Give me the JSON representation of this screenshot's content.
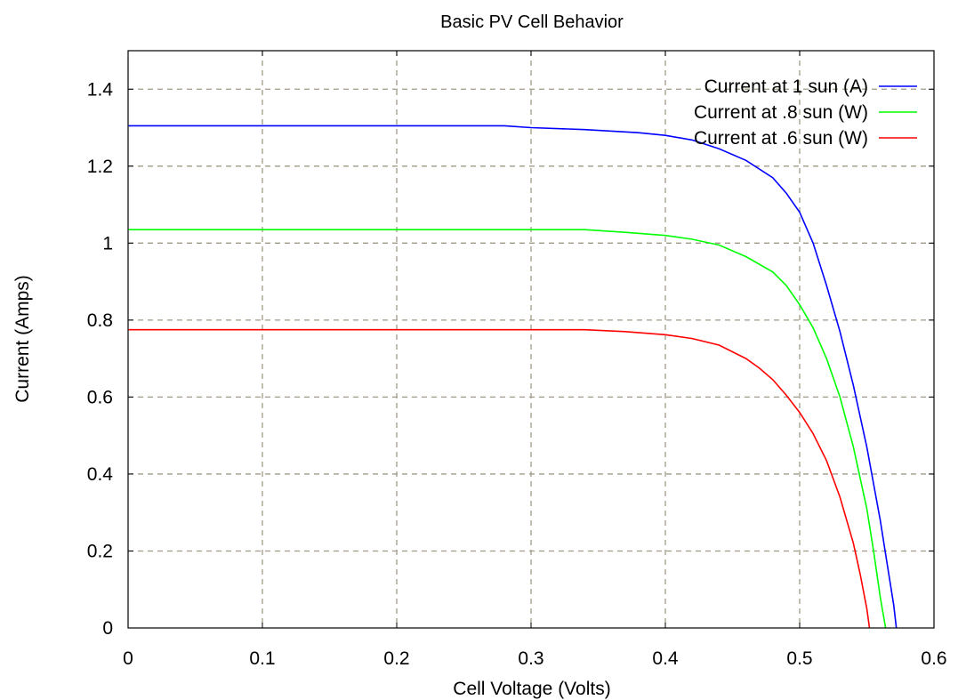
{
  "chart_data": {
    "type": "line",
    "title": "Basic PV Cell Behavior",
    "xlabel": "Cell Voltage (Volts)",
    "ylabel": "Current (Amps)",
    "xlim": [
      0,
      0.6
    ],
    "ylim": [
      0,
      1.5
    ],
    "xticks": [
      0,
      0.1,
      0.2,
      0.3,
      0.4,
      0.5,
      0.6
    ],
    "xtick_labels": [
      "0",
      "0.1",
      "0.2",
      "0.3",
      "0.4",
      "0.5",
      "0.6"
    ],
    "yticks": [
      0,
      0.2,
      0.4,
      0.6,
      0.8,
      1.0,
      1.2,
      1.4
    ],
    "ytick_labels": [
      "0",
      "0.2",
      "0.4",
      "0.6",
      "0.8",
      "1",
      "1.2",
      "1.4"
    ],
    "grid": true,
    "legend_position": "top-right",
    "series": [
      {
        "name": "Current at 1 sun (A)",
        "color": "#0000ff",
        "x": [
          0,
          0.1,
          0.2,
          0.28,
          0.3,
          0.34,
          0.38,
          0.4,
          0.42,
          0.44,
          0.46,
          0.48,
          0.49,
          0.5,
          0.51,
          0.52,
          0.53,
          0.54,
          0.55,
          0.56,
          0.565,
          0.57,
          0.572
        ],
        "y": [
          1.305,
          1.305,
          1.305,
          1.305,
          1.3,
          1.295,
          1.287,
          1.28,
          1.268,
          1.245,
          1.215,
          1.17,
          1.13,
          1.08,
          1.0,
          0.89,
          0.77,
          0.63,
          0.47,
          0.28,
          0.17,
          0.06,
          0
        ]
      },
      {
        "name": "Current at .8 sun (W)",
        "color": "#00ff00",
        "x": [
          0,
          0.1,
          0.2,
          0.3,
          0.34,
          0.37,
          0.4,
          0.42,
          0.44,
          0.46,
          0.48,
          0.49,
          0.5,
          0.51,
          0.52,
          0.53,
          0.54,
          0.55,
          0.555,
          0.56,
          0.564
        ],
        "y": [
          1.035,
          1.035,
          1.035,
          1.035,
          1.035,
          1.028,
          1.02,
          1.01,
          0.995,
          0.965,
          0.925,
          0.89,
          0.84,
          0.78,
          0.7,
          0.6,
          0.47,
          0.31,
          0.2,
          0.08,
          0
        ]
      },
      {
        "name": "Current at .6 sun (W)",
        "color": "#ff0000",
        "x": [
          0,
          0.1,
          0.2,
          0.3,
          0.34,
          0.37,
          0.4,
          0.42,
          0.44,
          0.46,
          0.47,
          0.48,
          0.49,
          0.5,
          0.51,
          0.52,
          0.53,
          0.54,
          0.545,
          0.55,
          0.552
        ],
        "y": [
          0.775,
          0.775,
          0.775,
          0.775,
          0.775,
          0.77,
          0.762,
          0.752,
          0.735,
          0.7,
          0.675,
          0.645,
          0.605,
          0.56,
          0.505,
          0.435,
          0.34,
          0.22,
          0.14,
          0.05,
          0
        ]
      }
    ]
  }
}
